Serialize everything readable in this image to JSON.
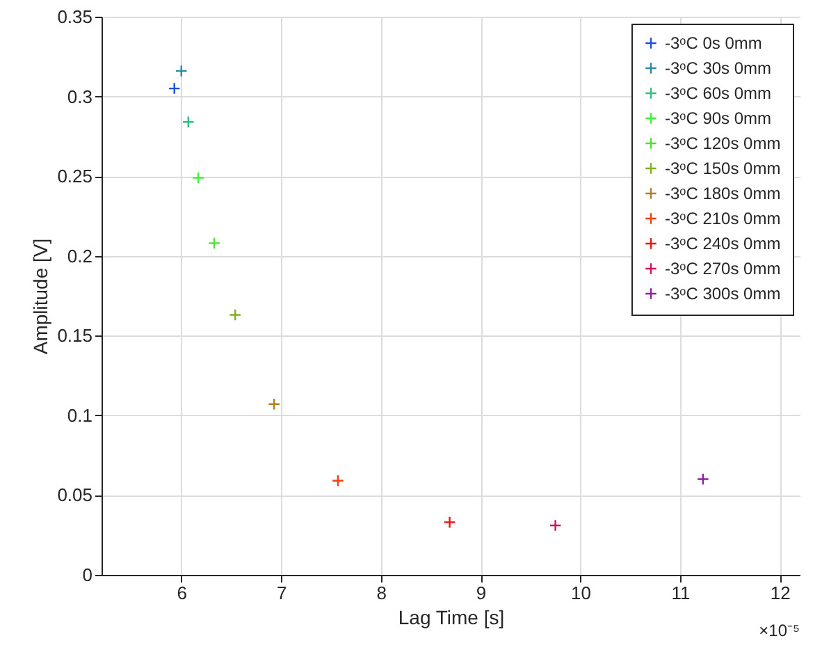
{
  "chart_data": {
    "type": "scatter",
    "xlabel": "Lag Time [s]",
    "ylabel": "Amplitude [V]",
    "xlim": [
      5.2,
      12.2
    ],
    "xticks": [
      6,
      7,
      8,
      9,
      10,
      11,
      12
    ],
    "ylim": [
      0,
      0.35
    ],
    "yticks": [
      0,
      0.05,
      0.1,
      0.15,
      0.2,
      0.25,
      0.3,
      0.35
    ],
    "grid": true,
    "legend": "top right",
    "marker": "cross",
    "annotations": [
      "×10⁻⁵"
    ],
    "series": [
      {
        "name": "-3ᵒC 0s 0mm",
        "color": "#1f4fe0",
        "x": [
          5.93
        ],
        "values": [
          0.305
        ]
      },
      {
        "name": "-3ᵒC 30s 0mm",
        "color": "#2a8aa0",
        "x": [
          6.0
        ],
        "values": [
          0.316
        ]
      },
      {
        "name": "-3ᵒC 60s 0mm",
        "color": "#30c080",
        "x": [
          6.07
        ],
        "values": [
          0.284
        ]
      },
      {
        "name": "-3ᵒC 90s 0mm",
        "color": "#40f040",
        "x": [
          6.17
        ],
        "values": [
          0.249
        ]
      },
      {
        "name": "-3ᵒC 120s 0mm",
        "color": "#50e030",
        "x": [
          6.33
        ],
        "values": [
          0.208
        ]
      },
      {
        "name": "-3ᵒC 150s 0mm",
        "color": "#80b020",
        "x": [
          6.54
        ],
        "values": [
          0.163
        ]
      },
      {
        "name": "-3ᵒC 180s 0mm",
        "color": "#b08020",
        "x": [
          6.93
        ],
        "values": [
          0.107
        ]
      },
      {
        "name": "-3ᵒC 210s 0mm",
        "color": "#f04010",
        "x": [
          7.57
        ],
        "values": [
          0.059
        ]
      },
      {
        "name": "-3ᵒC 240s 0mm",
        "color": "#f01010",
        "x": [
          8.69
        ],
        "values": [
          0.033
        ]
      },
      {
        "name": "-3ᵒC 270s 0mm",
        "color": "#d01060",
        "x": [
          9.75
        ],
        "values": [
          0.031
        ]
      },
      {
        "name": "-3ᵒC 300s 0mm",
        "color": "#9020a0",
        "x": [
          11.23
        ],
        "values": [
          0.06
        ]
      }
    ]
  }
}
